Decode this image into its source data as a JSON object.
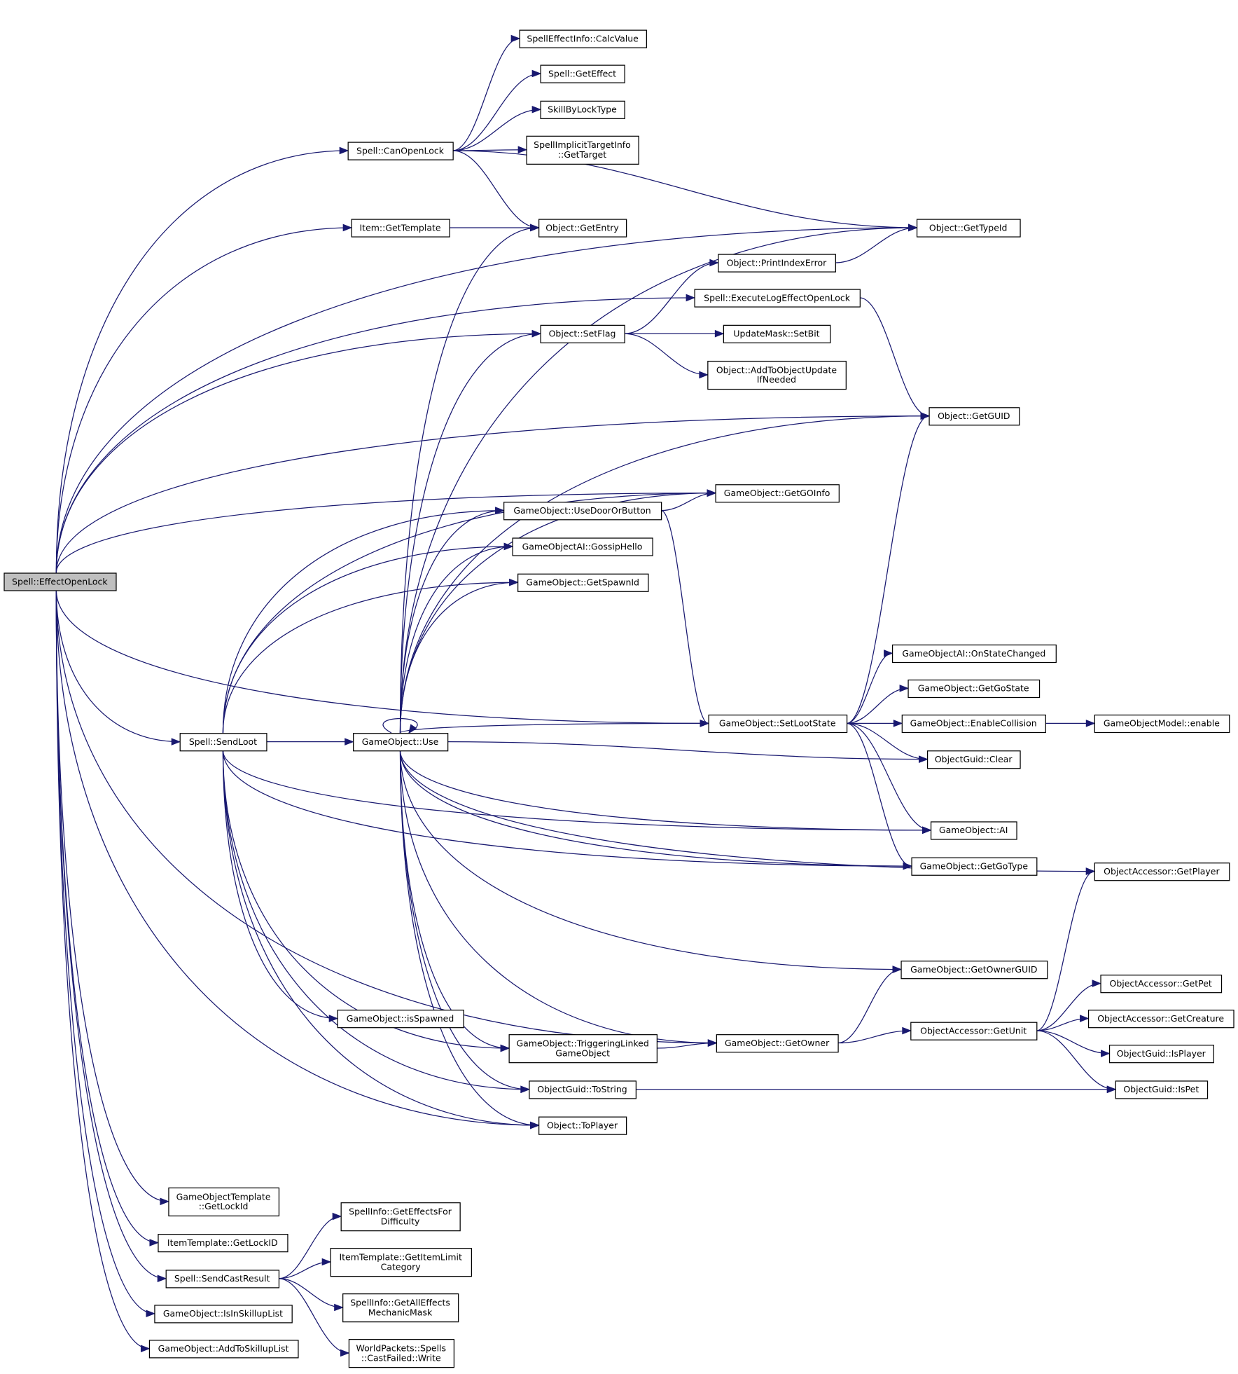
{
  "colors": {
    "edge": "#191970",
    "root_fill": "#bfbfbf",
    "node_border": "#000000",
    "incomplete_border": "#ff0000"
  },
  "nodes": [
    {
      "id": "EffectOpenLock",
      "lines": [
        "Spell::EffectOpenLock"
      ],
      "root": true
    },
    {
      "id": "CanOpenLock",
      "lines": [
        "Spell::CanOpenLock"
      ]
    },
    {
      "id": "CalcValue",
      "lines": [
        "SpellEffectInfo::CalcValue"
      ],
      "red": true
    },
    {
      "id": "GetEffect",
      "lines": [
        "Spell::GetEffect"
      ]
    },
    {
      "id": "SkillByLockType",
      "lines": [
        "SkillByLockType"
      ]
    },
    {
      "id": "GetTarget",
      "lines": [
        "SpellImplicitTargetInfo",
        "::GetTarget"
      ]
    },
    {
      "id": "GetTemplate",
      "lines": [
        "Item::GetTemplate"
      ]
    },
    {
      "id": "GetEntry",
      "lines": [
        "Object::GetEntry"
      ]
    },
    {
      "id": "GetTypeId",
      "lines": [
        "Object::GetTypeId"
      ]
    },
    {
      "id": "PrintIndexError",
      "lines": [
        "Object::PrintIndexError"
      ]
    },
    {
      "id": "ExecuteLog",
      "lines": [
        "Spell::ExecuteLogEffectOpenLock"
      ]
    },
    {
      "id": "SetFlag",
      "lines": [
        "Object::SetFlag"
      ]
    },
    {
      "id": "SetBit",
      "lines": [
        "UpdateMask::SetBit"
      ]
    },
    {
      "id": "AddToObjectUpdate",
      "lines": [
        "Object::AddToObjectUpdate",
        "IfNeeded"
      ],
      "red": true
    },
    {
      "id": "GetGUID",
      "lines": [
        "Object::GetGUID"
      ]
    },
    {
      "id": "GetGOInfo",
      "lines": [
        "GameObject::GetGOInfo"
      ]
    },
    {
      "id": "UseDoorOrButton",
      "lines": [
        "GameObject::UseDoorOrButton"
      ],
      "red": true
    },
    {
      "id": "GossipHello",
      "lines": [
        "GameObjectAI::GossipHello"
      ]
    },
    {
      "id": "GetSpawnId",
      "lines": [
        "GameObject::GetSpawnId"
      ]
    },
    {
      "id": "OnStateChanged",
      "lines": [
        "GameObjectAI::OnStateChanged"
      ]
    },
    {
      "id": "GetGoState",
      "lines": [
        "GameObject::GetGoState"
      ]
    },
    {
      "id": "SendLoot",
      "lines": [
        "Spell::SendLoot"
      ]
    },
    {
      "id": "Use",
      "lines": [
        "GameObject::Use"
      ],
      "red": true
    },
    {
      "id": "SetLootState",
      "lines": [
        "GameObject::SetLootState"
      ]
    },
    {
      "id": "EnableCollision",
      "lines": [
        "GameObject::EnableCollision"
      ],
      "red": true
    },
    {
      "id": "ModelEnable",
      "lines": [
        "GameObjectModel::enable"
      ]
    },
    {
      "id": "Clear",
      "lines": [
        "ObjectGuid::Clear"
      ]
    },
    {
      "id": "AI",
      "lines": [
        "GameObject::AI"
      ]
    },
    {
      "id": "GetGoType",
      "lines": [
        "GameObject::GetGoType"
      ]
    },
    {
      "id": "GetPlayer",
      "lines": [
        "ObjectAccessor::GetPlayer"
      ]
    },
    {
      "id": "GetOwnerGUID",
      "lines": [
        "GameObject::GetOwnerGUID"
      ]
    },
    {
      "id": "GetPet",
      "lines": [
        "ObjectAccessor::GetPet"
      ],
      "red": true
    },
    {
      "id": "GetCreature",
      "lines": [
        "ObjectAccessor::GetCreature"
      ],
      "red": true
    },
    {
      "id": "isSpawned",
      "lines": [
        "GameObject::isSpawned"
      ]
    },
    {
      "id": "Triggering",
      "lines": [
        "GameObject::TriggeringLinked",
        "GameObject"
      ],
      "red": true
    },
    {
      "id": "GetOwner",
      "lines": [
        "GameObject::GetOwner"
      ]
    },
    {
      "id": "GetUnit",
      "lines": [
        "ObjectAccessor::GetUnit"
      ]
    },
    {
      "id": "IsPlayer",
      "lines": [
        "ObjectGuid::IsPlayer"
      ]
    },
    {
      "id": "ToString",
      "lines": [
        "ObjectGuid::ToString"
      ],
      "red": true
    },
    {
      "id": "IsPet",
      "lines": [
        "ObjectGuid::IsPet"
      ]
    },
    {
      "id": "ToPlayer",
      "lines": [
        "Object::ToPlayer"
      ]
    },
    {
      "id": "GOTLockId",
      "lines": [
        "GameObjectTemplate",
        "::GetLockId"
      ]
    },
    {
      "id": "EffectsForDifficulty",
      "lines": [
        "SpellInfo::GetEffectsFor",
        "Difficulty"
      ]
    },
    {
      "id": "ITLockID",
      "lines": [
        "ItemTemplate::GetLockID"
      ]
    },
    {
      "id": "ItemLimitCategory",
      "lines": [
        "ItemTemplate::GetItemLimit",
        "Category"
      ]
    },
    {
      "id": "SendCastResult",
      "lines": [
        "Spell::SendCastResult"
      ]
    },
    {
      "id": "MechanicMask",
      "lines": [
        "SpellInfo::GetAllEffects",
        "MechanicMask"
      ],
      "red": true
    },
    {
      "id": "IsInSkillupList",
      "lines": [
        "GameObject::IsInSkillupList"
      ]
    },
    {
      "id": "CastFailedWrite",
      "lines": [
        "WorldPackets::Spells",
        "::CastFailed::Write"
      ]
    },
    {
      "id": "AddToSkillupList",
      "lines": [
        "GameObject::AddToSkillupList"
      ]
    }
  ],
  "edges": [
    [
      "EffectOpenLock",
      "CanOpenLock"
    ],
    [
      "EffectOpenLock",
      "GetTypeId"
    ],
    [
      "EffectOpenLock",
      "GetTemplate"
    ],
    [
      "EffectOpenLock",
      "GetGUID"
    ],
    [
      "EffectOpenLock",
      "ExecuteLog"
    ],
    [
      "EffectOpenLock",
      "SetFlag"
    ],
    [
      "EffectOpenLock",
      "GetGOInfo"
    ],
    [
      "EffectOpenLock",
      "SetLootState"
    ],
    [
      "EffectOpenLock",
      "SendLoot"
    ],
    [
      "EffectOpenLock",
      "GetOwner"
    ],
    [
      "EffectOpenLock",
      "ToPlayer"
    ],
    [
      "EffectOpenLock",
      "GOTLockId"
    ],
    [
      "EffectOpenLock",
      "ITLockID"
    ],
    [
      "EffectOpenLock",
      "SendCastResult"
    ],
    [
      "EffectOpenLock",
      "IsInSkillupList"
    ],
    [
      "EffectOpenLock",
      "AddToSkillupList"
    ],
    [
      "CanOpenLock",
      "CalcValue"
    ],
    [
      "CanOpenLock",
      "GetEffect"
    ],
    [
      "CanOpenLock",
      "SkillByLockType"
    ],
    [
      "CanOpenLock",
      "GetTarget"
    ],
    [
      "CanOpenLock",
      "GetEntry"
    ],
    [
      "CanOpenLock",
      "GetTypeId"
    ],
    [
      "GetTemplate",
      "GetEntry"
    ],
    [
      "PrintIndexError",
      "GetTypeId"
    ],
    [
      "ExecuteLog",
      "GetGUID"
    ],
    [
      "SetFlag",
      "PrintIndexError"
    ],
    [
      "SetFlag",
      "SetBit"
    ],
    [
      "SetFlag",
      "AddToObjectUpdate"
    ],
    [
      "UseDoorOrButton",
      "GetGOInfo"
    ],
    [
      "UseDoorOrButton",
      "SetLootState"
    ],
    [
      "SendLoot",
      "GetGOInfo"
    ],
    [
      "SendLoot",
      "UseDoorOrButton"
    ],
    [
      "SendLoot",
      "GossipHello"
    ],
    [
      "SendLoot",
      "GetSpawnId"
    ],
    [
      "SendLoot",
      "Use"
    ],
    [
      "SendLoot",
      "AI"
    ],
    [
      "SendLoot",
      "GetGoType"
    ],
    [
      "SendLoot",
      "isSpawned"
    ],
    [
      "SendLoot",
      "Triggering"
    ],
    [
      "SendLoot",
      "ToString"
    ],
    [
      "SendLoot",
      "ToPlayer"
    ],
    [
      "Use",
      "Use"
    ],
    [
      "Use",
      "GetEntry"
    ],
    [
      "Use",
      "SetFlag"
    ],
    [
      "Use",
      "UseDoorOrButton"
    ],
    [
      "Use",
      "GossipHello"
    ],
    [
      "Use",
      "GetSpawnId"
    ],
    [
      "Use",
      "GetGOInfo"
    ],
    [
      "Use",
      "GetTypeId"
    ],
    [
      "Use",
      "GetGUID"
    ],
    [
      "Use",
      "SetLootState"
    ],
    [
      "Use",
      "Clear"
    ],
    [
      "Use",
      "GetPlayer"
    ],
    [
      "Use",
      "AI"
    ],
    [
      "Use",
      "GetGoType"
    ],
    [
      "Use",
      "GetOwnerGUID"
    ],
    [
      "Use",
      "GetOwner"
    ],
    [
      "Use",
      "Triggering"
    ],
    [
      "Use",
      "ToString"
    ],
    [
      "Use",
      "ToPlayer"
    ],
    [
      "SetLootState",
      "OnStateChanged"
    ],
    [
      "SetLootState",
      "GetGoState"
    ],
    [
      "SetLootState",
      "EnableCollision"
    ],
    [
      "SetLootState",
      "Clear"
    ],
    [
      "SetLootState",
      "AI"
    ],
    [
      "SetLootState",
      "GetGoType"
    ],
    [
      "SetLootState",
      "GetGUID"
    ],
    [
      "EnableCollision",
      "ModelEnable"
    ],
    [
      "Triggering",
      "GetOwner"
    ],
    [
      "GetOwner",
      "GetOwnerGUID"
    ],
    [
      "GetOwner",
      "GetUnit"
    ],
    [
      "GetUnit",
      "GetPlayer"
    ],
    [
      "GetUnit",
      "GetPet"
    ],
    [
      "GetUnit",
      "GetCreature"
    ],
    [
      "GetUnit",
      "IsPlayer"
    ],
    [
      "GetUnit",
      "IsPet"
    ],
    [
      "ToString",
      "IsPet"
    ],
    [
      "SendCastResult",
      "EffectsForDifficulty"
    ],
    [
      "SendCastResult",
      "ItemLimitCategory"
    ],
    [
      "SendCastResult",
      "MechanicMask"
    ],
    [
      "SendCastResult",
      "CastFailedWrite"
    ]
  ]
}
